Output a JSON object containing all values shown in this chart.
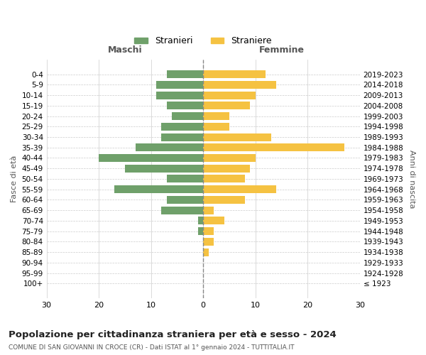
{
  "age_groups": [
    "100+",
    "95-99",
    "90-94",
    "85-89",
    "80-84",
    "75-79",
    "70-74",
    "65-69",
    "60-64",
    "55-59",
    "50-54",
    "45-49",
    "40-44",
    "35-39",
    "30-34",
    "25-29",
    "20-24",
    "15-19",
    "10-14",
    "5-9",
    "0-4"
  ],
  "birth_years": [
    "≤ 1923",
    "1924-1928",
    "1929-1933",
    "1934-1938",
    "1939-1943",
    "1944-1948",
    "1949-1953",
    "1954-1958",
    "1959-1963",
    "1964-1968",
    "1969-1973",
    "1974-1978",
    "1979-1983",
    "1984-1988",
    "1989-1993",
    "1994-1998",
    "1999-2003",
    "2004-2008",
    "2009-2013",
    "2014-2018",
    "2019-2023"
  ],
  "males": [
    0,
    0,
    0,
    0,
    0,
    1,
    1,
    8,
    7,
    17,
    7,
    15,
    20,
    13,
    8,
    8,
    6,
    7,
    9,
    9,
    7
  ],
  "females": [
    0,
    0,
    0,
    1,
    2,
    2,
    4,
    2,
    8,
    14,
    8,
    9,
    10,
    27,
    13,
    5,
    5,
    9,
    10,
    14,
    12
  ],
  "male_color": "#6fa06a",
  "female_color": "#f5c242",
  "title": "Popolazione per cittadinanza straniera per età e sesso - 2024",
  "subtitle": "COMUNE DI SAN GIOVANNI IN CROCE (CR) - Dati ISTAT al 1° gennaio 2024 - TUTTITALIA.IT",
  "legend_male": "Stranieri",
  "legend_female": "Straniere",
  "xlabel_left": "Maschi",
  "xlabel_right": "Femmine",
  "ylabel_left": "Fasce di età",
  "ylabel_right": "Anni di nascita",
  "xlim": 30,
  "background_color": "#ffffff",
  "grid_color": "#cccccc"
}
